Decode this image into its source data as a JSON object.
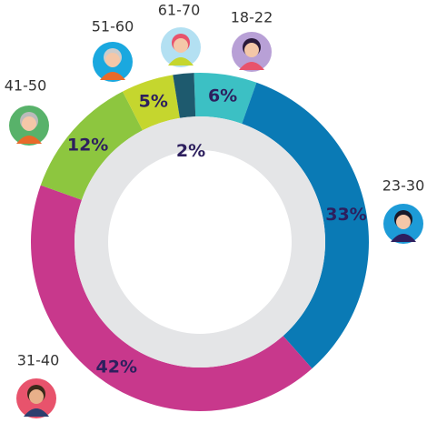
{
  "chart_data": {
    "type": "donut",
    "categories": [
      "18-22",
      "23-30",
      "31-40",
      "41-50",
      "51-60",
      "61-70"
    ],
    "values": [
      6,
      33,
      42,
      12,
      5,
      2
    ],
    "value_labels": [
      "6%",
      "33%",
      "42%",
      "12%",
      "5%",
      "2%"
    ],
    "colors": [
      "#3cc0c4",
      "#0a7ab5",
      "#c8388c",
      "#8dc63f",
      "#c5d62e",
      "#1e5a6e"
    ]
  }
}
